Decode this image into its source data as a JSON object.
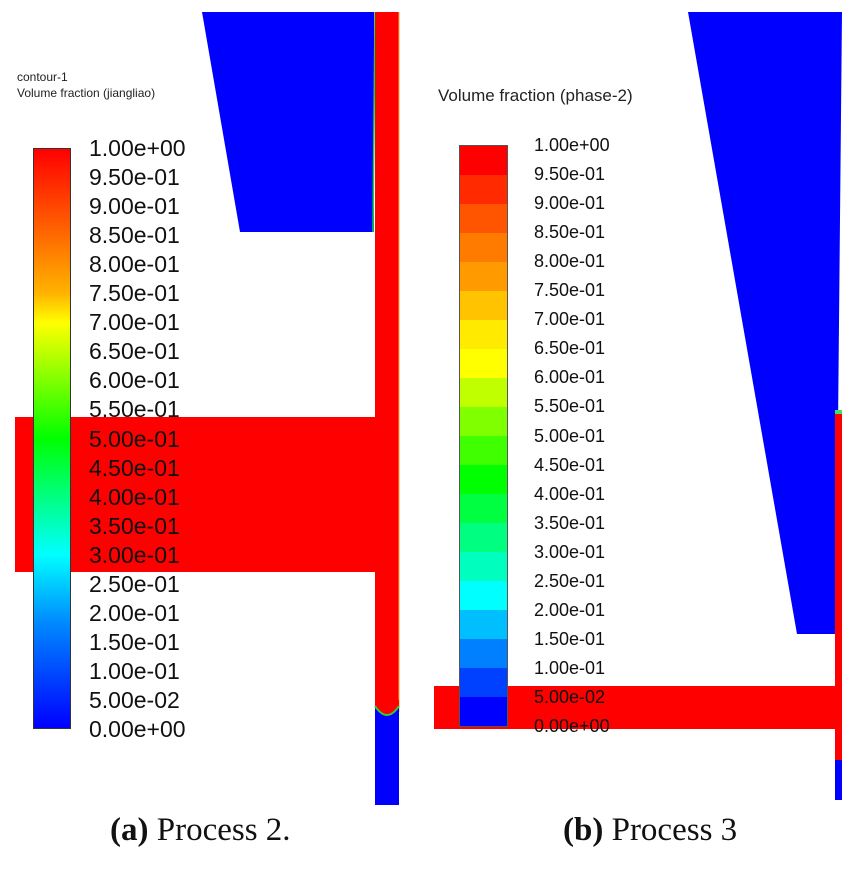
{
  "figure": {
    "panels": [
      {
        "id": "a",
        "caption_letter": "(a)",
        "caption_text": " Process 2.",
        "contour_name": "contour-1",
        "colorbar_title": "Volume fraction (jiangliao)",
        "colorbar_style": "continuous",
        "labels": [
          "1.00e+00",
          "9.50e-01",
          "9.00e-01",
          "8.50e-01",
          "8.00e-01",
          "7.50e-01",
          "7.00e-01",
          "6.50e-01",
          "6.00e-01",
          "5.50e-01",
          "5.00e-01",
          "4.50e-01",
          "4.00e-01",
          "3.50e-01",
          "3.00e-01",
          "2.50e-01",
          "2.00e-01",
          "1.50e-01",
          "1.00e-01",
          "5.00e-02",
          "0.00e+00"
        ]
      },
      {
        "id": "b",
        "caption_letter": "(b)",
        "caption_text": " Process 3",
        "colorbar_title": "Volume fraction (phase-2)",
        "colorbar_style": "banded",
        "labels": [
          "1.00e+00",
          "9.50e-01",
          "9.00e-01",
          "8.50e-01",
          "8.00e-01",
          "7.50e-01",
          "7.00e-01",
          "6.50e-01",
          "6.00e-01",
          "5.50e-01",
          "5.00e-01",
          "4.50e-01",
          "4.00e-01",
          "3.50e-01",
          "3.00e-01",
          "2.50e-01",
          "2.00e-01",
          "1.50e-01",
          "1.00e-01",
          "5.00e-02",
          "0.00e+00"
        ],
        "bands": [
          "#ff0000",
          "#ff2a00",
          "#ff5500",
          "#ff7b00",
          "#ff9a00",
          "#ffc300",
          "#ffea00",
          "#ffff00",
          "#bfff00",
          "#80ff00",
          "#40ff00",
          "#00ff00",
          "#00ff40",
          "#00ff80",
          "#00ffbf",
          "#00ffff",
          "#00bfff",
          "#0080ff",
          "#0040ff",
          "#0000ff"
        ]
      }
    ],
    "colors": {
      "phase_full": "#ff0000",
      "phase_empty": "#0000ff",
      "interface": "#00e040"
    }
  }
}
